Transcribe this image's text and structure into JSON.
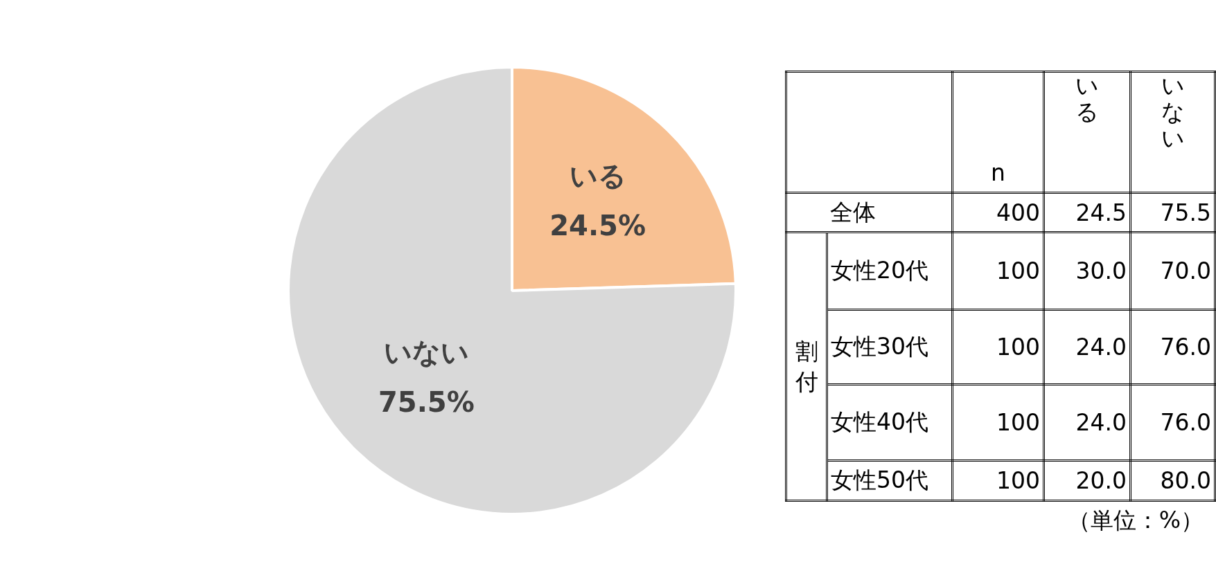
{
  "chart_data": [
    {
      "type": "pie",
      "categories": [
        "いる",
        "いない"
      ],
      "values": [
        24.5,
        75.5
      ],
      "colors": [
        "#f8c193",
        "#d9d9d9"
      ],
      "value_labels": [
        "24.5%",
        "75.5%"
      ],
      "legend": false
    },
    {
      "type": "heatmap",
      "categories": [
        "n",
        "いる",
        "いない"
      ],
      "y_categories": [
        "全体",
        "女性20代",
        "女性30代",
        "女性40代",
        "女性50代"
      ],
      "cells": [
        [
          400,
          24.5,
          75.5
        ],
        [
          100,
          30.0,
          70.0
        ],
        [
          100,
          24.0,
          76.0
        ],
        [
          100,
          24.0,
          76.0
        ],
        [
          100,
          20.0,
          80.0
        ]
      ],
      "cell_labels": [
        [
          "400",
          "24.5",
          "75.5"
        ],
        [
          "100",
          "30.0",
          "70.0"
        ],
        [
          "100",
          "24.0",
          "76.0"
        ],
        [
          "100",
          "24.0",
          "76.0"
        ],
        [
          "100",
          "20.0",
          "80.0"
        ]
      ],
      "annotations": [
        "割付",
        "（単位：%）"
      ]
    }
  ]
}
